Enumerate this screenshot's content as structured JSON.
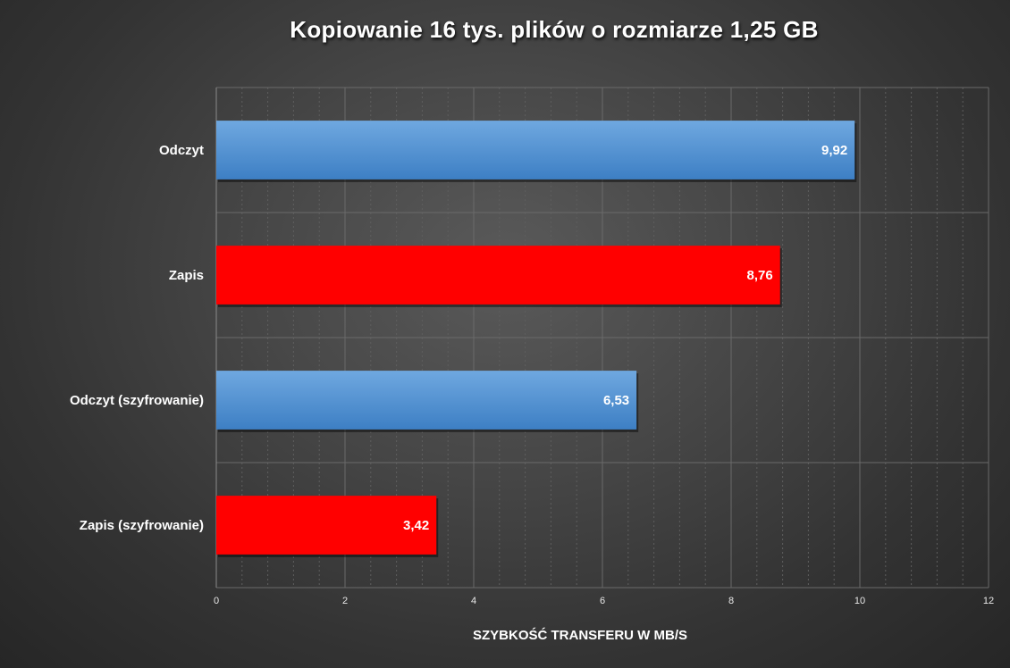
{
  "chart_data": {
    "type": "bar",
    "orientation": "horizontal",
    "title": "Kopiowanie 16 tys. plików o rozmiarze 1,25 GB",
    "xlabel": "SZYBKOŚĆ TRANSFERU W MB/S",
    "ylabel": "",
    "categories": [
      "Odczyt",
      "Zapis",
      "Odczyt (szyfrowanie)",
      "Zapis (szyfrowanie)"
    ],
    "values": [
      9.92,
      8.76,
      6.53,
      3.42
    ],
    "value_labels": [
      "9,92",
      "8,76",
      "6,53",
      "3,42"
    ],
    "bar_colors": [
      "#5b9bd5",
      "#ff0000",
      "#5b9bd5",
      "#ff0000"
    ],
    "xlim": [
      0,
      12
    ],
    "xticks": [
      0,
      2,
      4,
      6,
      8,
      10,
      12
    ],
    "xtick_labels": [
      "0",
      "2",
      "4",
      "6",
      "8",
      "10",
      "12"
    ],
    "grid": true,
    "legend": "none"
  }
}
